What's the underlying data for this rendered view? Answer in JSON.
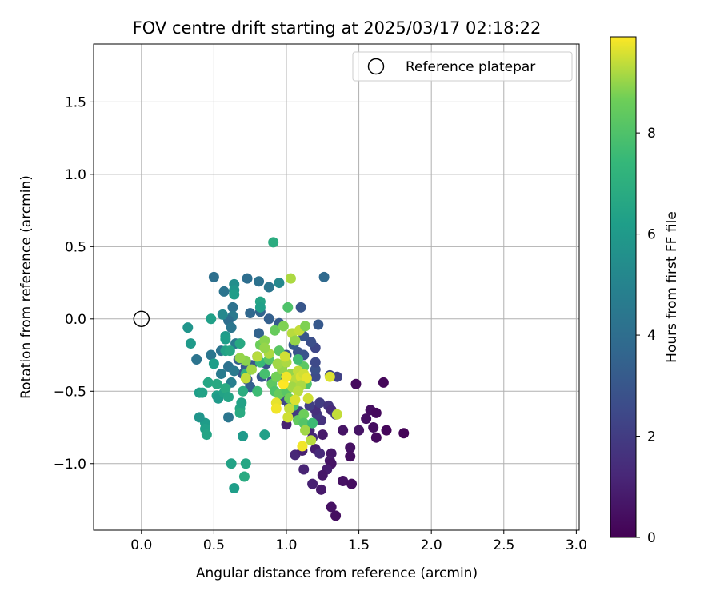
{
  "chart_data": {
    "type": "scatter",
    "title": "FOV centre drift starting at 2025/03/17 02:18:22",
    "xlabel": "Angular distance from reference (arcmin)",
    "ylabel": "Rotation from reference (arcmin)",
    "xlim": [
      -0.33,
      3.02
    ],
    "ylim": [
      -1.46,
      1.9
    ],
    "xticks": [
      0.0,
      0.5,
      1.0,
      1.5,
      2.0,
      2.5,
      3.0
    ],
    "xtick_labels": [
      "0.0",
      "0.5",
      "1.0",
      "1.5",
      "2.0",
      "2.5",
      "3.0"
    ],
    "yticks": [
      -1.0,
      -0.5,
      0.0,
      0.5,
      1.0,
      1.5
    ],
    "ytick_labels": [
      "−1.0",
      "−0.5",
      "0.0",
      "0.5",
      "1.0",
      "1.5"
    ],
    "grid": true,
    "legend": {
      "placement": "top-right",
      "entries": [
        "Reference platepar"
      ]
    },
    "reference_point": {
      "x": 0.0,
      "y": 0.0
    },
    "colorbar": {
      "label": "Hours from first FF file",
      "range": [
        0,
        9.9
      ],
      "ticks": [
        0,
        2,
        4,
        6,
        8
      ],
      "tick_labels": [
        "0",
        "2",
        "4",
        "6",
        "8"
      ],
      "colormap": "viridis"
    },
    "points": [
      {
        "x": 1.48,
        "y": -0.45,
        "c": 0.3
      },
      {
        "x": 1.67,
        "y": -0.44,
        "c": 0.2
      },
      {
        "x": 1.58,
        "y": -0.63,
        "c": 0.4
      },
      {
        "x": 1.62,
        "y": -0.65,
        "c": 0.3
      },
      {
        "x": 1.55,
        "y": -0.69,
        "c": 0.5
      },
      {
        "x": 1.5,
        "y": -0.77,
        "c": 0.6
      },
      {
        "x": 1.6,
        "y": -0.75,
        "c": 0.4
      },
      {
        "x": 1.69,
        "y": -0.77,
        "c": 0.2
      },
      {
        "x": 1.62,
        "y": -0.82,
        "c": 0.3
      },
      {
        "x": 1.81,
        "y": -0.79,
        "c": 0.1
      },
      {
        "x": 1.44,
        "y": -0.89,
        "c": 0.5
      },
      {
        "x": 1.44,
        "y": -0.95,
        "c": 0.4
      },
      {
        "x": 1.39,
        "y": -0.77,
        "c": 0.6
      },
      {
        "x": 1.31,
        "y": -0.93,
        "c": 0.7
      },
      {
        "x": 1.3,
        "y": -0.98,
        "c": 0.8
      },
      {
        "x": 1.31,
        "y": -1.0,
        "c": 0.6
      },
      {
        "x": 1.28,
        "y": -1.04,
        "c": 0.9
      },
      {
        "x": 1.25,
        "y": -1.08,
        "c": 0.7
      },
      {
        "x": 1.39,
        "y": -1.12,
        "c": 0.5
      },
      {
        "x": 1.45,
        "y": -1.14,
        "c": 0.4
      },
      {
        "x": 1.18,
        "y": -1.14,
        "c": 1.0
      },
      {
        "x": 1.24,
        "y": -1.18,
        "c": 0.8
      },
      {
        "x": 1.31,
        "y": -1.3,
        "c": 0.5
      },
      {
        "x": 1.34,
        "y": -1.36,
        "c": 0.4
      },
      {
        "x": 1.12,
        "y": -1.04,
        "c": 1.1
      },
      {
        "x": 1.06,
        "y": -0.94,
        "c": 1.2
      },
      {
        "x": 1.11,
        "y": -0.91,
        "c": 1.0
      },
      {
        "x": 1.2,
        "y": -0.9,
        "c": 0.9
      },
      {
        "x": 1.23,
        "y": -0.93,
        "c": 1.3
      },
      {
        "x": 1.18,
        "y": -0.82,
        "c": 1.4
      },
      {
        "x": 1.16,
        "y": -0.77,
        "c": 1.1
      },
      {
        "x": 1.25,
        "y": -0.8,
        "c": 0.8
      },
      {
        "x": 1.0,
        "y": -0.73,
        "c": 1.0
      },
      {
        "x": 1.24,
        "y": -0.7,
        "c": 1.6
      },
      {
        "x": 1.21,
        "y": -0.66,
        "c": 1.8
      },
      {
        "x": 1.2,
        "y": -0.63,
        "c": 1.5
      },
      {
        "x": 1.23,
        "y": -0.58,
        "c": 2.0
      },
      {
        "x": 1.29,
        "y": -0.6,
        "c": 1.7
      },
      {
        "x": 1.31,
        "y": -0.63,
        "c": 1.4
      },
      {
        "x": 1.34,
        "y": -0.66,
        "c": 1.9
      },
      {
        "x": 1.16,
        "y": -0.6,
        "c": 2.1
      },
      {
        "x": 1.09,
        "y": -0.64,
        "c": 2.2
      },
      {
        "x": 1.05,
        "y": -0.65,
        "c": 1.9
      },
      {
        "x": 1.02,
        "y": -0.6,
        "c": 2.3
      },
      {
        "x": 0.99,
        "y": -0.56,
        "c": 2.4
      },
      {
        "x": 1.35,
        "y": -0.4,
        "c": 2.2
      },
      {
        "x": 1.3,
        "y": -0.39,
        "c": 2.4
      },
      {
        "x": 1.2,
        "y": -0.4,
        "c": 2.6
      },
      {
        "x": 1.2,
        "y": -0.35,
        "c": 2.8
      },
      {
        "x": 1.2,
        "y": -0.3,
        "c": 2.5
      },
      {
        "x": 1.2,
        "y": -0.2,
        "c": 2.4
      },
      {
        "x": 1.17,
        "y": -0.16,
        "c": 2.7
      },
      {
        "x": 1.12,
        "y": -0.25,
        "c": 2.9
      },
      {
        "x": 1.12,
        "y": -0.12,
        "c": 3.0
      },
      {
        "x": 1.08,
        "y": -0.23,
        "c": 2.9
      },
      {
        "x": 1.05,
        "y": -0.18,
        "c": 3.2
      },
      {
        "x": 1.0,
        "y": -0.25,
        "c": 3.0
      },
      {
        "x": 0.97,
        "y": -0.33,
        "c": 2.7
      },
      {
        "x": 0.94,
        "y": -0.4,
        "c": 2.6
      },
      {
        "x": 0.9,
        "y": -0.43,
        "c": 2.8
      },
      {
        "x": 0.86,
        "y": -0.31,
        "c": 2.9
      },
      {
        "x": 0.83,
        "y": -0.4,
        "c": 3.1
      },
      {
        "x": 0.8,
        "y": -0.26,
        "c": 3.3
      },
      {
        "x": 0.76,
        "y": -0.32,
        "c": 3.0
      },
      {
        "x": 0.73,
        "y": -0.42,
        "c": 2.9
      },
      {
        "x": 0.72,
        "y": -0.33,
        "c": 3.2
      },
      {
        "x": 0.75,
        "y": -0.47,
        "c": 3.4
      },
      {
        "x": 0.7,
        "y": -0.38,
        "c": 3.0
      },
      {
        "x": 0.67,
        "y": -0.28,
        "c": 3.3
      },
      {
        "x": 1.1,
        "y": 0.08,
        "c": 3.0
      },
      {
        "x": 1.22,
        "y": -0.04,
        "c": 3.1
      },
      {
        "x": 1.26,
        "y": 0.29,
        "c": 3.8
      },
      {
        "x": 0.95,
        "y": -0.03,
        "c": 3.2
      },
      {
        "x": 0.88,
        "y": 0.0,
        "c": 3.4
      },
      {
        "x": 0.82,
        "y": 0.05,
        "c": 3.6
      },
      {
        "x": 0.75,
        "y": 0.04,
        "c": 3.7
      },
      {
        "x": 0.81,
        "y": -0.1,
        "c": 3.5
      },
      {
        "x": 0.73,
        "y": 0.28,
        "c": 4.0
      },
      {
        "x": 0.81,
        "y": 0.26,
        "c": 4.2
      },
      {
        "x": 0.88,
        "y": 0.22,
        "c": 4.4
      },
      {
        "x": 0.95,
        "y": 0.25,
        "c": 5.2
      },
      {
        "x": 0.5,
        "y": 0.29,
        "c": 4.1
      },
      {
        "x": 0.57,
        "y": 0.19,
        "c": 4.3
      },
      {
        "x": 0.63,
        "y": 0.08,
        "c": 4.2
      },
      {
        "x": 0.63,
        "y": 0.02,
        "c": 4.5
      },
      {
        "x": 0.6,
        "y": -0.01,
        "c": 4.0
      },
      {
        "x": 0.62,
        "y": -0.06,
        "c": 4.4
      },
      {
        "x": 0.65,
        "y": -0.17,
        "c": 4.6
      },
      {
        "x": 0.55,
        "y": -0.22,
        "c": 4.3
      },
      {
        "x": 0.6,
        "y": -0.33,
        "c": 4.2
      },
      {
        "x": 0.64,
        "y": -0.36,
        "c": 4.5
      },
      {
        "x": 0.55,
        "y": -0.38,
        "c": 4.6
      },
      {
        "x": 0.48,
        "y": -0.25,
        "c": 4.4
      },
      {
        "x": 0.38,
        "y": -0.28,
        "c": 4.3
      },
      {
        "x": 0.62,
        "y": -0.44,
        "c": 4.8
      },
      {
        "x": 0.6,
        "y": -0.68,
        "c": 4.4
      },
      {
        "x": 0.56,
        "y": 0.03,
        "c": 5.2
      },
      {
        "x": 0.64,
        "y": 0.24,
        "c": 5.5
      },
      {
        "x": 0.64,
        "y": 0.2,
        "c": 5.8
      },
      {
        "x": 0.64,
        "y": 0.17,
        "c": 6.2
      },
      {
        "x": 0.82,
        "y": 0.12,
        "c": 6.5
      },
      {
        "x": 0.82,
        "y": 0.08,
        "c": 6.3
      },
      {
        "x": 0.58,
        "y": -0.12,
        "c": 6.0
      },
      {
        "x": 0.58,
        "y": -0.14,
        "c": 6.2
      },
      {
        "x": 0.58,
        "y": -0.22,
        "c": 6.4
      },
      {
        "x": 0.61,
        "y": -0.22,
        "c": 6.6
      },
      {
        "x": 0.68,
        "y": -0.17,
        "c": 6.7
      },
      {
        "x": 0.5,
        "y": -0.31,
        "c": 6.2
      },
      {
        "x": 0.32,
        "y": -0.06,
        "c": 5.8
      },
      {
        "x": 0.34,
        "y": -0.17,
        "c": 6.0
      },
      {
        "x": 0.48,
        "y": 0.0,
        "c": 6.3
      },
      {
        "x": 0.4,
        "y": -0.51,
        "c": 6.2
      },
      {
        "x": 0.42,
        "y": -0.51,
        "c": 6.4
      },
      {
        "x": 0.46,
        "y": -0.44,
        "c": 6.6
      },
      {
        "x": 0.52,
        "y": -0.45,
        "c": 6.7
      },
      {
        "x": 0.52,
        "y": -0.53,
        "c": 6.3
      },
      {
        "x": 0.53,
        "y": -0.55,
        "c": 6.0
      },
      {
        "x": 0.57,
        "y": -0.51,
        "c": 6.4
      },
      {
        "x": 0.58,
        "y": -0.48,
        "c": 6.8
      },
      {
        "x": 0.6,
        "y": -0.54,
        "c": 6.5
      },
      {
        "x": 0.44,
        "y": -0.72,
        "c": 6.1
      },
      {
        "x": 0.44,
        "y": -0.76,
        "c": 6.3
      },
      {
        "x": 0.45,
        "y": -0.8,
        "c": 6.5
      },
      {
        "x": 0.4,
        "y": -0.68,
        "c": 5.8
      },
      {
        "x": 0.68,
        "y": -0.62,
        "c": 6.6
      },
      {
        "x": 0.68,
        "y": -0.65,
        "c": 6.8
      },
      {
        "x": 0.7,
        "y": -0.5,
        "c": 6.9
      },
      {
        "x": 0.69,
        "y": -0.58,
        "c": 6.4
      },
      {
        "x": 0.7,
        "y": -0.81,
        "c": 6.0
      },
      {
        "x": 0.85,
        "y": -0.8,
        "c": 6.3
      },
      {
        "x": 0.62,
        "y": -1.0,
        "c": 6.4
      },
      {
        "x": 0.72,
        "y": -1.0,
        "c": 6.6
      },
      {
        "x": 0.71,
        "y": -1.09,
        "c": 6.8
      },
      {
        "x": 0.64,
        "y": -1.17,
        "c": 6.2
      },
      {
        "x": 0.91,
        "y": 0.53,
        "c": 6.9
      },
      {
        "x": 0.72,
        "y": -0.38,
        "c": 7.2
      },
      {
        "x": 0.8,
        "y": -0.5,
        "c": 7.6
      },
      {
        "x": 0.85,
        "y": -0.38,
        "c": 7.8
      },
      {
        "x": 0.82,
        "y": -0.3,
        "c": 7.5
      },
      {
        "x": 0.88,
        "y": -0.28,
        "c": 8.1
      },
      {
        "x": 0.9,
        "y": -0.45,
        "c": 8.3
      },
      {
        "x": 0.92,
        "y": -0.5,
        "c": 8.0
      },
      {
        "x": 0.95,
        "y": -0.52,
        "c": 8.5
      },
      {
        "x": 1.0,
        "y": -0.5,
        "c": 8.2
      },
      {
        "x": 1.02,
        "y": -0.55,
        "c": 8.7
      },
      {
        "x": 1.05,
        "y": -0.6,
        "c": 7.9
      },
      {
        "x": 1.08,
        "y": -0.7,
        "c": 8.4
      },
      {
        "x": 1.12,
        "y": -0.66,
        "c": 8.6
      },
      {
        "x": 1.12,
        "y": -0.72,
        "c": 8.1
      },
      {
        "x": 1.18,
        "y": -0.72,
        "c": 7.6
      },
      {
        "x": 1.14,
        "y": -0.45,
        "c": 8.0
      },
      {
        "x": 1.12,
        "y": -0.33,
        "c": 8.3
      },
      {
        "x": 1.08,
        "y": -0.28,
        "c": 7.7
      },
      {
        "x": 0.95,
        "y": -0.22,
        "c": 8.2
      },
      {
        "x": 0.92,
        "y": -0.08,
        "c": 8.5
      },
      {
        "x": 0.98,
        "y": -0.05,
        "c": 8.8
      },
      {
        "x": 1.01,
        "y": 0.08,
        "c": 8.0
      },
      {
        "x": 0.82,
        "y": -0.18,
        "c": 8.6
      },
      {
        "x": 0.85,
        "y": -0.15,
        "c": 8.9
      },
      {
        "x": 0.93,
        "y": -0.4,
        "c": 8.7
      },
      {
        "x": 0.97,
        "y": -0.35,
        "c": 9.0
      },
      {
        "x": 0.94,
        "y": -0.31,
        "c": 9.1
      },
      {
        "x": 1.0,
        "y": -0.3,
        "c": 9.2
      },
      {
        "x": 1.03,
        "y": -0.38,
        "c": 9.0
      },
      {
        "x": 1.06,
        "y": -0.42,
        "c": 9.3
      },
      {
        "x": 1.04,
        "y": -0.47,
        "c": 9.1
      },
      {
        "x": 1.08,
        "y": -0.36,
        "c": 9.4
      },
      {
        "x": 1.1,
        "y": -0.4,
        "c": 9.6
      },
      {
        "x": 1.12,
        "y": -0.38,
        "c": 9.5
      },
      {
        "x": 1.14,
        "y": -0.41,
        "c": 9.7
      },
      {
        "x": 1.1,
        "y": -0.46,
        "c": 9.2
      },
      {
        "x": 1.08,
        "y": -0.5,
        "c": 9.3
      },
      {
        "x": 1.06,
        "y": -0.56,
        "c": 9.6
      },
      {
        "x": 1.02,
        "y": -0.62,
        "c": 9.4
      },
      {
        "x": 1.01,
        "y": -0.68,
        "c": 9.5
      },
      {
        "x": 0.93,
        "y": -0.58,
        "c": 9.7
      },
      {
        "x": 0.93,
        "y": -0.62,
        "c": 9.8
      },
      {
        "x": 0.88,
        "y": -0.24,
        "c": 9.2
      },
      {
        "x": 0.85,
        "y": -0.2,
        "c": 9.0
      },
      {
        "x": 0.8,
        "y": -0.26,
        "c": 9.3
      },
      {
        "x": 0.76,
        "y": -0.35,
        "c": 9.1
      },
      {
        "x": 0.72,
        "y": -0.29,
        "c": 8.9
      },
      {
        "x": 0.68,
        "y": -0.27,
        "c": 9.0
      },
      {
        "x": 0.72,
        "y": -0.41,
        "c": 9.4
      },
      {
        "x": 0.99,
        "y": -0.26,
        "c": 9.5
      },
      {
        "x": 1.03,
        "y": 0.28,
        "c": 9.2
      },
      {
        "x": 1.04,
        "y": -0.1,
        "c": 9.3
      },
      {
        "x": 1.06,
        "y": -0.15,
        "c": 9.0
      },
      {
        "x": 1.09,
        "y": -0.08,
        "c": 9.4
      },
      {
        "x": 1.13,
        "y": -0.05,
        "c": 8.8
      },
      {
        "x": 1.13,
        "y": -0.77,
        "c": 9.1
      },
      {
        "x": 1.17,
        "y": -0.84,
        "c": 9.3
      },
      {
        "x": 1.11,
        "y": -0.88,
        "c": 9.8
      },
      {
        "x": 1.3,
        "y": -0.4,
        "c": 9.6
      },
      {
        "x": 1.35,
        "y": -0.66,
        "c": 9.4
      },
      {
        "x": 0.98,
        "y": -0.45,
        "c": 9.9
      },
      {
        "x": 1.0,
        "y": -0.4,
        "c": 9.8
      },
      {
        "x": 1.15,
        "y": -0.55,
        "c": 9.5
      }
    ]
  }
}
